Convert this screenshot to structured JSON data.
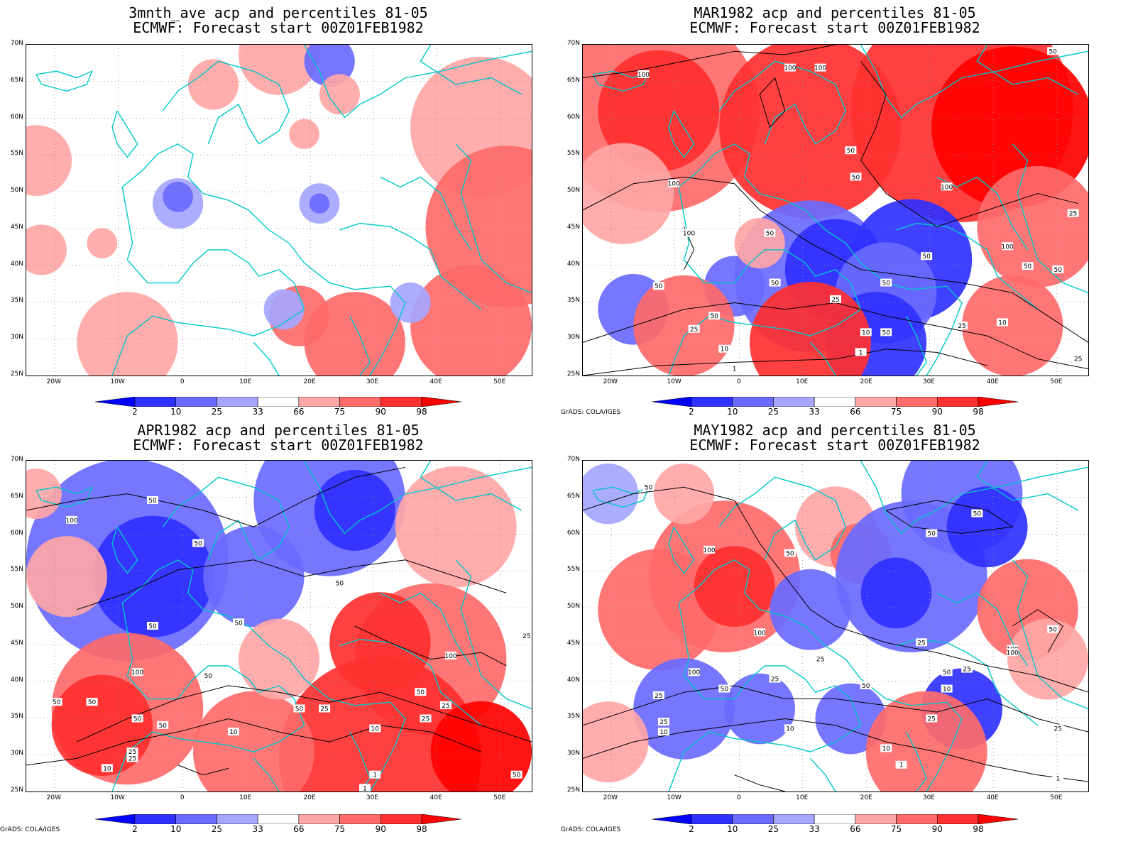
{
  "panels": [
    {
      "title_line1": "3mnth_ave acp and percentiles 81-05",
      "title_line2": "ECMWF: Forecast start 00Z01FEB1982",
      "contour_labels": []
    },
    {
      "title_line1": "MAR1982 acp and percentiles 81-05",
      "title_line2": "ECMWF: Forecast start 00Z01FEB1982",
      "contour_labels": [
        "100",
        "100",
        "100",
        "50",
        "50",
        "50",
        "100",
        "100",
        "50",
        "100",
        "50",
        "50",
        "50",
        "50",
        "50",
        "25",
        "10",
        "1",
        "10",
        "25",
        "50",
        "25",
        "100",
        "50",
        "50",
        "10",
        "25",
        "1",
        "25"
      ]
    },
    {
      "title_line1": "APR1982 acp and percentiles 81-05",
      "title_line2": "ECMWF: Forecast start 00Z01FEB1982",
      "contour_labels": [
        "50",
        "100",
        "50",
        "50",
        "50",
        "50",
        "100",
        "50",
        "50",
        "50",
        "50",
        "25",
        "10",
        "50",
        "25",
        "10",
        "25",
        "1",
        "100",
        "25",
        "50",
        "50",
        "25",
        "25",
        "10",
        "50",
        "1"
      ]
    },
    {
      "title_line1": "MAY1982 acp and percentiles 81-05",
      "title_line2": "ECMWF: Forecast start 00Z01FEB1982",
      "contour_labels": [
        "50",
        "100",
        "50",
        "50",
        "50",
        "100",
        "100",
        "100",
        "25",
        "50",
        "25",
        "25",
        "50",
        "25",
        "100",
        "25",
        "50",
        "25",
        "10",
        "10",
        "25",
        "10",
        "50",
        "25",
        "1",
        "10",
        "1"
      ]
    }
  ],
  "axes": {
    "y_ticks": [
      "70N",
      "65N",
      "60N",
      "55N",
      "50N",
      "45N",
      "40N",
      "35N",
      "30N",
      "25N"
    ],
    "x_ticks": [
      "20W",
      "10W",
      "0",
      "10E",
      "20E",
      "30E",
      "40E",
      "50E"
    ]
  },
  "colorbar": {
    "labels": [
      "2",
      "10",
      "25",
      "33",
      "66",
      "75",
      "90",
      "98"
    ],
    "colors": [
      "#0000ff",
      "#3030ff",
      "#6a6aff",
      "#a6a6ff",
      "#ffffff",
      "#ffa6a6",
      "#ff6a6a",
      "#ff3030",
      "#ff0000"
    ]
  },
  "credit": "GrADS: COLA/IGES",
  "colors": {
    "coast": "#00c8c8",
    "contour": "#000000"
  }
}
